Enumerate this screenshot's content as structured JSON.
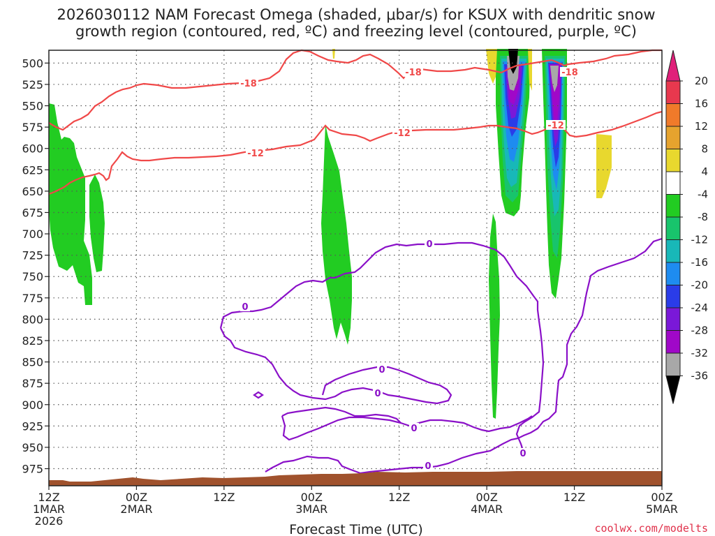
{
  "chart_data": {
    "type": "time-height cross section",
    "title_line1": "2026030112 NAM Forecast Omega (shaded, μbar/s) for KSUX with dendritic snow",
    "title_line2": "growth region (contoured, red, ºC) and freezing level (contoured, purple, ºC)",
    "xlabel": "Forecast Time (UTC)",
    "credit": "coolwx.com/modelts",
    "y_ticks": [
      "500",
      "525",
      "550",
      "575",
      "600",
      "625",
      "650",
      "675",
      "700",
      "725",
      "750",
      "775",
      "800",
      "825",
      "850",
      "875",
      "900",
      "925",
      "950",
      "975"
    ],
    "x_ticks": [
      {
        "line1": "12Z",
        "line2": "1MAR",
        "line3": "2026"
      },
      {
        "line1": "00Z",
        "line2": "2MAR",
        "line3": ""
      },
      {
        "line1": "12Z",
        "line2": "",
        "line3": ""
      },
      {
        "line1": "00Z",
        "line2": "3MAR",
        "line3": ""
      },
      {
        "line1": "12Z",
        "line2": "",
        "line3": ""
      },
      {
        "line1": "00Z",
        "line2": "4MAR",
        "line3": ""
      },
      {
        "line1": "12Z",
        "line2": "",
        "line3": ""
      },
      {
        "line1": "00Z",
        "line2": "5MAR",
        "line3": ""
      }
    ],
    "forecast_hours_range": [
      0,
      84
    ],
    "pressure_range_mb": [
      485,
      995
    ],
    "colorbar": {
      "labels": [
        "20",
        "16",
        "12",
        "8",
        "4",
        "-4",
        "-8",
        "-12",
        "-16",
        "-20",
        "-24",
        "-28",
        "-32",
        "-36"
      ],
      "bins": [
        {
          "range": "16-20",
          "color": "#e8384e"
        },
        {
          "range": "12-16",
          "color": "#f07a2a"
        },
        {
          "range": "8-12",
          "color": "#e6a32e"
        },
        {
          "range": "4-8",
          "color": "#e8d82e"
        },
        {
          "range": "-4-4",
          "color": "#ffffff"
        },
        {
          "range": "-8--4",
          "color": "#22cc22"
        },
        {
          "range": "-12--8",
          "color": "#18c46c"
        },
        {
          "range": "-16--12",
          "color": "#18b8b8"
        },
        {
          "range": "-20--16",
          "color": "#1e8cf0"
        },
        {
          "range": "-24--20",
          "color": "#2a3ce8"
        },
        {
          "range": "-28--24",
          "color": "#7a18d8"
        },
        {
          "range": "-32--28",
          "color": "#a008c8"
        },
        {
          "range": "-36--32",
          "color": "#a8a8a8"
        }
      ],
      "top_arrow_color": "#e0207a",
      "bottom_arrow_color": "#000000"
    },
    "contour_labels": {
      "dgz_upper": "-18",
      "dgz_lower": "-12",
      "freezing": "0"
    },
    "colors": {
      "dgz_contour": "#f04848",
      "freezing_contour": "#8a10c8",
      "terrain": "#a0522d",
      "grid": "#555555"
    }
  }
}
